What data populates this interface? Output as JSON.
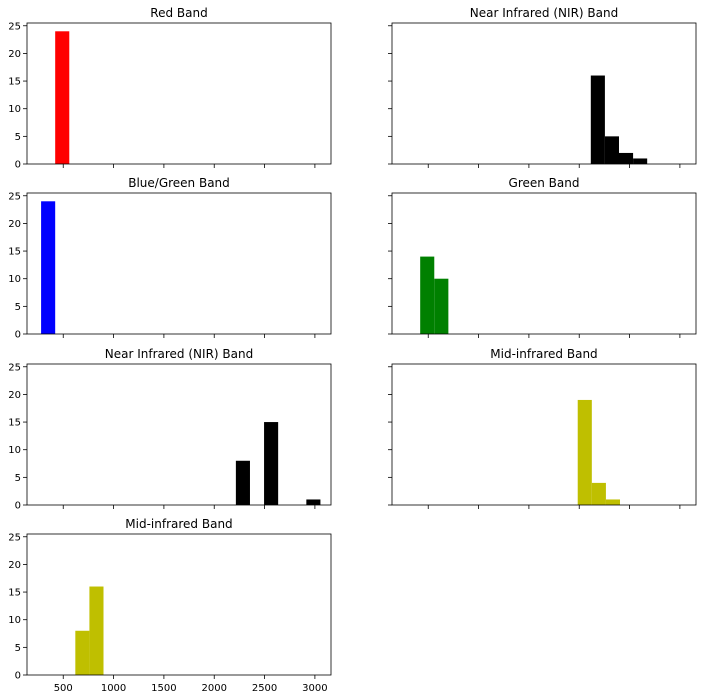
{
  "colors": {
    "red": "#ff0000",
    "black": "#000000",
    "blue": "#0000ff",
    "green": "#008000",
    "yellow": "#bfbf00"
  },
  "chart_data": [
    {
      "type": "histogram",
      "title": "Red Band",
      "color": "#ff0000",
      "xlim": [
        140,
        3160
      ],
      "ylim": [
        0,
        25.5
      ],
      "yticks": [
        0,
        5,
        10,
        15,
        20,
        25
      ],
      "xticks": [
        500,
        1000,
        1500,
        2000,
        2500,
        3000
      ],
      "show_xtick_labels": false,
      "show_ytick_labels": true,
      "bins": [
        {
          "x0": 420,
          "x1": 560,
          "count": 24
        }
      ]
    },
    {
      "type": "histogram",
      "title": "Near Infrared (NIR) Band",
      "color": "#000000",
      "xlim": [
        140,
        3160
      ],
      "ylim": [
        0,
        25.5
      ],
      "yticks": [
        0,
        5,
        10,
        15,
        20,
        25
      ],
      "xticks": [
        500,
        1000,
        1500,
        2000,
        2500,
        3000
      ],
      "show_xtick_labels": false,
      "show_ytick_labels": false,
      "bins": [
        {
          "x0": 2115,
          "x1": 2255,
          "count": 16
        },
        {
          "x0": 2255,
          "x1": 2395,
          "count": 5
        },
        {
          "x0": 2395,
          "x1": 2535,
          "count": 2
        },
        {
          "x0": 2535,
          "x1": 2675,
          "count": 1
        }
      ]
    },
    {
      "type": "histogram",
      "title": "Blue/Green Band",
      "color": "#0000ff",
      "xlim": [
        140,
        3160
      ],
      "ylim": [
        0,
        25.5
      ],
      "yticks": [
        0,
        5,
        10,
        15,
        20,
        25
      ],
      "xticks": [
        500,
        1000,
        1500,
        2000,
        2500,
        3000
      ],
      "show_xtick_labels": false,
      "show_ytick_labels": true,
      "bins": [
        {
          "x0": 280,
          "x1": 420,
          "count": 24
        }
      ]
    },
    {
      "type": "histogram",
      "title": "Green Band",
      "color": "#008000",
      "xlim": [
        140,
        3160
      ],
      "ylim": [
        0,
        25.5
      ],
      "yticks": [
        0,
        5,
        10,
        15,
        20,
        25
      ],
      "xticks": [
        500,
        1000,
        1500,
        2000,
        2500,
        3000
      ],
      "show_xtick_labels": false,
      "show_ytick_labels": false,
      "bins": [
        {
          "x0": 420,
          "x1": 560,
          "count": 14
        },
        {
          "x0": 560,
          "x1": 700,
          "count": 10
        }
      ]
    },
    {
      "type": "histogram",
      "title": "Near Infrared (NIR) Band",
      "color": "#000000",
      "xlim": [
        140,
        3160
      ],
      "ylim": [
        0,
        25.5
      ],
      "yticks": [
        0,
        5,
        10,
        15,
        20,
        25
      ],
      "xticks": [
        500,
        1000,
        1500,
        2000,
        2500,
        3000
      ],
      "show_xtick_labels": false,
      "show_ytick_labels": true,
      "bins": [
        {
          "x0": 2215,
          "x1": 2355,
          "count": 8
        },
        {
          "x0": 2495,
          "x1": 2635,
          "count": 15
        },
        {
          "x0": 2915,
          "x1": 3055,
          "count": 1
        }
      ]
    },
    {
      "type": "histogram",
      "title": "Mid-infrared Band",
      "color": "#bfbf00",
      "xlim": [
        140,
        3160
      ],
      "ylim": [
        0,
        25.5
      ],
      "yticks": [
        0,
        5,
        10,
        15,
        20,
        25
      ],
      "xticks": [
        500,
        1000,
        1500,
        2000,
        2500,
        3000
      ],
      "show_xtick_labels": false,
      "show_ytick_labels": false,
      "bins": [
        {
          "x0": 1985,
          "x1": 2125,
          "count": 19
        },
        {
          "x0": 2125,
          "x1": 2265,
          "count": 4
        },
        {
          "x0": 2265,
          "x1": 2405,
          "count": 1
        }
      ]
    },
    {
      "type": "histogram",
      "title": "Mid-infrared Band",
      "color": "#bfbf00",
      "xlim": [
        140,
        3160
      ],
      "ylim": [
        0,
        25.5
      ],
      "yticks": [
        0,
        5,
        10,
        15,
        20,
        25
      ],
      "xticks": [
        500,
        1000,
        1500,
        2000,
        2500,
        3000
      ],
      "show_xtick_labels": true,
      "show_ytick_labels": true,
      "bins": [
        {
          "x0": 620,
          "x1": 760,
          "count": 8
        },
        {
          "x0": 760,
          "x1": 900,
          "count": 16
        }
      ]
    }
  ]
}
